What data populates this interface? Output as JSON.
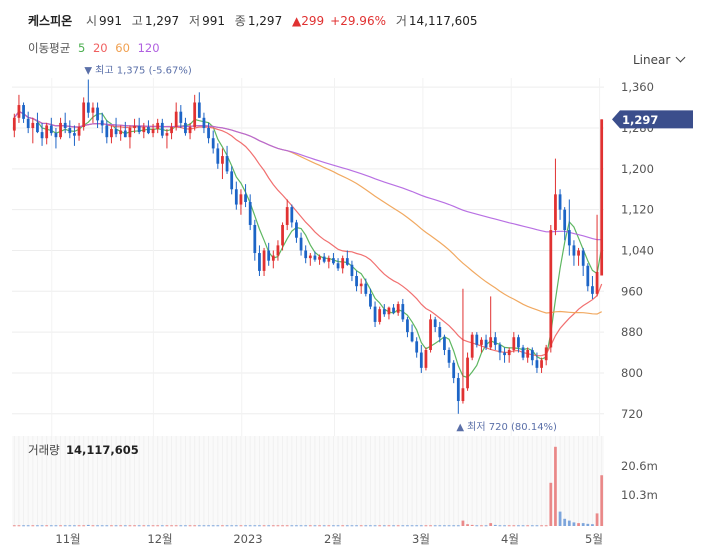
{
  "header": {
    "name": "케스피온",
    "open_label": "시",
    "open_value": "991",
    "high_label": "고",
    "high_value": "1,297",
    "low_label": "저",
    "low_value": "991",
    "close_label": "종",
    "close_value": "1,297",
    "change": "▲299",
    "change_pct": "+29.96%",
    "volume_label": "거",
    "volume_value": "14,117,605"
  },
  "ma_legend": {
    "label": "이동평균",
    "periods": [
      "5",
      "20",
      "60",
      "120"
    ],
    "colors": [
      "#4caf50",
      "#f06060",
      "#f0a050",
      "#b060e0"
    ]
  },
  "scale_button": "Linear",
  "chart_data": {
    "type": "candlestick",
    "y_ticks": [
      "1,360",
      "1,280",
      "1,200",
      "1,120",
      "1,040",
      "960",
      "880",
      "800",
      "720"
    ],
    "y_tick_values": [
      1360,
      1280,
      1200,
      1120,
      1040,
      960,
      880,
      800,
      720
    ],
    "ylim": [
      698,
      1378
    ],
    "x_ticks": [
      "11월",
      "12월",
      "2023",
      "2월",
      "3월",
      "4월",
      "5월"
    ],
    "last_price_label": "1,297",
    "high_annotation": "▼ 최고 1,375 (-5.67%)",
    "low_annotation": "▲ 최저 720 (80.14%)",
    "volume_title_label": "거래량",
    "volume_title_value": "14,117,605",
    "volume_ticks": [
      "20.6m",
      "10.3m"
    ],
    "colors": {
      "up": "#e03131",
      "down": "#1c64c6",
      "price_tag": "#3b4e8c"
    },
    "candles": [
      [
        1275,
        1308,
        1262,
        1300
      ],
      [
        1300,
        1345,
        1290,
        1325
      ],
      [
        1325,
        1330,
        1290,
        1298
      ],
      [
        1298,
        1312,
        1270,
        1280
      ],
      [
        1280,
        1300,
        1250,
        1290
      ],
      [
        1290,
        1310,
        1270,
        1272
      ],
      [
        1272,
        1290,
        1245,
        1260
      ],
      [
        1260,
        1290,
        1248,
        1285
      ],
      [
        1285,
        1300,
        1265,
        1270
      ],
      [
        1270,
        1280,
        1240,
        1262
      ],
      [
        1262,
        1300,
        1258,
        1290
      ],
      [
        1290,
        1310,
        1270,
        1280
      ],
      [
        1280,
        1295,
        1260,
        1270
      ],
      [
        1270,
        1285,
        1245,
        1265
      ],
      [
        1265,
        1290,
        1255,
        1282
      ],
      [
        1282,
        1340,
        1275,
        1330
      ],
      [
        1330,
        1375,
        1300,
        1310
      ],
      [
        1310,
        1330,
        1290,
        1320
      ],
      [
        1320,
        1330,
        1280,
        1295
      ],
      [
        1295,
        1310,
        1270,
        1285
      ],
      [
        1285,
        1295,
        1250,
        1262
      ],
      [
        1262,
        1285,
        1250,
        1278
      ],
      [
        1278,
        1300,
        1262,
        1268
      ],
      [
        1268,
        1285,
        1255,
        1275
      ],
      [
        1275,
        1292,
        1262,
        1262
      ],
      [
        1262,
        1285,
        1240,
        1280
      ],
      [
        1280,
        1298,
        1270,
        1284
      ],
      [
        1284,
        1300,
        1268,
        1272
      ],
      [
        1272,
        1290,
        1260,
        1282
      ],
      [
        1282,
        1295,
        1268,
        1270
      ],
      [
        1270,
        1288,
        1262,
        1278
      ],
      [
        1278,
        1298,
        1270,
        1290
      ],
      [
        1290,
        1298,
        1260,
        1265
      ],
      [
        1265,
        1278,
        1240,
        1270
      ],
      [
        1270,
        1290,
        1258,
        1282
      ],
      [
        1282,
        1330,
        1275,
        1312
      ],
      [
        1312,
        1325,
        1280,
        1290
      ],
      [
        1290,
        1300,
        1265,
        1270
      ],
      [
        1270,
        1290,
        1258,
        1282
      ],
      [
        1282,
        1345,
        1275,
        1330
      ],
      [
        1330,
        1350,
        1300,
        1300
      ],
      [
        1300,
        1310,
        1270,
        1280
      ],
      [
        1280,
        1290,
        1250,
        1260
      ],
      [
        1260,
        1275,
        1230,
        1240
      ],
      [
        1240,
        1250,
        1200,
        1210
      ],
      [
        1210,
        1240,
        1180,
        1225
      ],
      [
        1225,
        1245,
        1190,
        1195
      ],
      [
        1195,
        1205,
        1150,
        1160
      ],
      [
        1160,
        1175,
        1120,
        1130
      ],
      [
        1130,
        1160,
        1110,
        1150
      ],
      [
        1150,
        1170,
        1125,
        1135
      ],
      [
        1135,
        1150,
        1080,
        1090
      ],
      [
        1090,
        1100,
        1020,
        1035
      ],
      [
        1035,
        1050,
        990,
        1000
      ],
      [
        1000,
        1045,
        990,
        1040
      ],
      [
        1040,
        1055,
        1010,
        1020
      ],
      [
        1020,
        1040,
        1005,
        1030
      ],
      [
        1030,
        1060,
        1020,
        1050
      ],
      [
        1050,
        1095,
        1040,
        1090
      ],
      [
        1090,
        1140,
        1080,
        1125
      ],
      [
        1125,
        1130,
        1085,
        1095
      ],
      [
        1095,
        1100,
        1055,
        1065
      ],
      [
        1065,
        1075,
        1030,
        1040
      ],
      [
        1040,
        1050,
        1015,
        1025
      ],
      [
        1025,
        1035,
        1010,
        1030
      ],
      [
        1030,
        1038,
        1018,
        1022
      ],
      [
        1022,
        1032,
        1012,
        1028
      ],
      [
        1028,
        1035,
        1015,
        1018
      ],
      [
        1018,
        1030,
        1005,
        1025
      ],
      [
        1025,
        1035,
        1012,
        1015
      ],
      [
        1015,
        1025,
        1000,
        1005
      ],
      [
        1005,
        1030,
        995,
        1025
      ],
      [
        1025,
        1040,
        1010,
        1012
      ],
      [
        1012,
        1020,
        980,
        990
      ],
      [
        990,
        1000,
        960,
        970
      ],
      [
        970,
        985,
        955,
        975
      ],
      [
        975,
        985,
        950,
        955
      ],
      [
        955,
        965,
        925,
        930
      ],
      [
        930,
        940,
        890,
        900
      ],
      [
        900,
        930,
        895,
        925
      ],
      [
        925,
        935,
        910,
        915
      ],
      [
        915,
        930,
        905,
        928
      ],
      [
        928,
        935,
        915,
        918
      ],
      [
        918,
        940,
        912,
        935
      ],
      [
        935,
        945,
        900,
        905
      ],
      [
        905,
        910,
        870,
        880
      ],
      [
        880,
        895,
        860,
        862
      ],
      [
        862,
        870,
        830,
        840
      ],
      [
        840,
        855,
        800,
        810
      ],
      [
        810,
        850,
        805,
        845
      ],
      [
        845,
        915,
        840,
        905
      ],
      [
        905,
        910,
        880,
        890
      ],
      [
        890,
        900,
        860,
        870
      ],
      [
        870,
        875,
        835,
        845
      ],
      [
        845,
        850,
        810,
        820
      ],
      [
        820,
        825,
        780,
        790
      ],
      [
        790,
        800,
        720,
        745
      ],
      [
        745,
        965,
        740,
        770
      ],
      [
        770,
        840,
        765,
        830
      ],
      [
        830,
        880,
        825,
        875
      ],
      [
        875,
        880,
        850,
        855
      ],
      [
        855,
        870,
        840,
        865
      ],
      [
        865,
        875,
        845,
        850
      ],
      [
        850,
        950,
        845,
        870
      ],
      [
        870,
        880,
        845,
        855
      ],
      [
        855,
        860,
        825,
        840
      ],
      [
        840,
        850,
        820,
        835
      ],
      [
        835,
        850,
        820,
        845
      ],
      [
        845,
        880,
        840,
        870
      ],
      [
        870,
        875,
        840,
        850
      ],
      [
        850,
        855,
        825,
        830
      ],
      [
        830,
        850,
        820,
        845
      ],
      [
        845,
        850,
        815,
        825
      ],
      [
        825,
        840,
        800,
        810
      ],
      [
        810,
        830,
        800,
        825
      ],
      [
        825,
        855,
        815,
        850
      ],
      [
        850,
        1090,
        840,
        1080
      ],
      [
        1080,
        1220,
        1070,
        1150
      ],
      [
        1150,
        1160,
        1100,
        1120
      ],
      [
        1120,
        1125,
        1060,
        1080
      ],
      [
        1080,
        1140,
        1030,
        1050
      ],
      [
        1050,
        1060,
        1010,
        1030
      ],
      [
        1030,
        1045,
        1010,
        1040
      ],
      [
        1040,
        1045,
        990,
        1010
      ],
      [
        1010,
        1015,
        960,
        970
      ],
      [
        970,
        990,
        945,
        955
      ],
      [
        955,
        1110,
        950,
        998
      ],
      [
        991,
        1297,
        991,
        1297
      ]
    ],
    "volume": [
      0.2,
      0.2,
      0.2,
      0.2,
      0.2,
      0.2,
      0.2,
      0.2,
      0.2,
      0.2,
      0.2,
      0.2,
      0.2,
      0.2,
      0.2,
      0.2,
      0.3,
      0.2,
      0.2,
      0.2,
      0.2,
      0.2,
      0.2,
      0.2,
      0.2,
      0.2,
      0.2,
      0.2,
      0.2,
      0.2,
      0.2,
      0.2,
      0.2,
      0.2,
      0.2,
      0.2,
      0.2,
      0.2,
      0.2,
      0.2,
      0.2,
      0.2,
      0.2,
      0.2,
      0.2,
      0.2,
      0.2,
      0.2,
      0.2,
      0.2,
      0.2,
      0.2,
      0.2,
      0.2,
      0.2,
      0.2,
      0.2,
      0.2,
      0.2,
      0.2,
      0.2,
      0.2,
      0.2,
      0.2,
      0.2,
      0.2,
      0.2,
      0.2,
      0.2,
      0.2,
      0.2,
      0.2,
      0.2,
      0.2,
      0.2,
      0.2,
      0.2,
      0.2,
      0.2,
      0.2,
      0.2,
      0.2,
      0.2,
      0.2,
      0.2,
      0.2,
      0.2,
      0.2,
      0.2,
      0.2,
      0.2,
      0.2,
      0.2,
      0.2,
      0.2,
      0.2,
      0.2,
      1.5,
      0.5,
      0.3,
      0.2,
      0.2,
      0.2,
      0.8,
      0.3,
      0.2,
      0.2,
      0.2,
      0.2,
      0.2,
      0.2,
      0.2,
      0.2,
      0.2,
      0.2,
      0.2,
      12.0,
      22.0,
      4.0,
      2.0,
      1.5,
      1.0,
      0.8,
      0.8,
      0.6,
      0.5,
      3.5,
      14.1
    ],
    "volume_max": 25
  }
}
